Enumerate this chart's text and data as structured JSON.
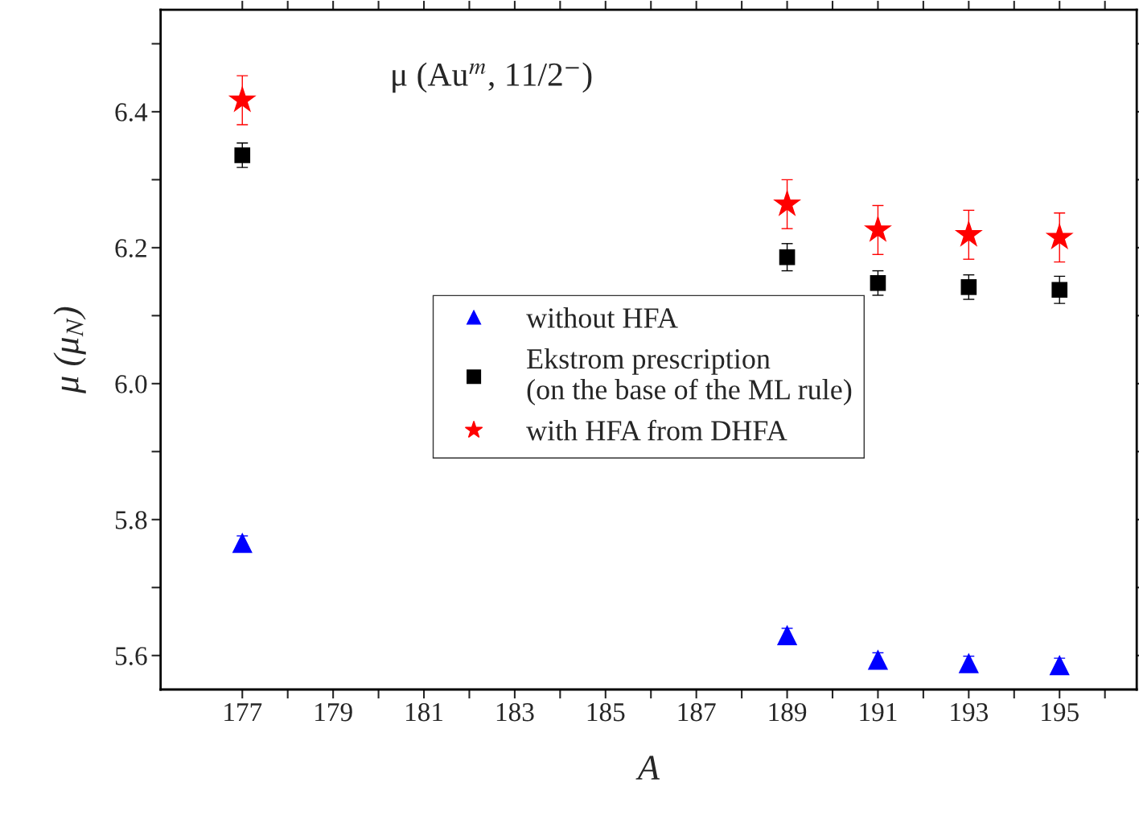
{
  "chart_data": {
    "type": "scatter",
    "xlabel": "A",
    "ylabel": "μ (μ$_{N}$)",
    "annotations": [
      "μ (Au$^{m}$, 11/2$^{−}$)"
    ],
    "x": [
      177,
      189,
      191,
      193,
      195
    ],
    "xlim": [
      175.2,
      196.7
    ],
    "ylim": [
      5.55,
      6.55
    ],
    "xticks": [
      177,
      {
        "value": 178,
        "label": null
      },
      179,
      {
        "value": 180,
        "label": null
      },
      181,
      {
        "value": 182,
        "label": null
      },
      183,
      {
        "value": 184,
        "label": null
      },
      185,
      {
        "value": 186,
        "label": null
      },
      187,
      {
        "value": 188,
        "label": null
      },
      189,
      {
        "value": 190,
        "label": null
      },
      191,
      {
        "value": 192,
        "label": null
      },
      193,
      {
        "value": 194,
        "label": null
      },
      195,
      {
        "value": 196,
        "label": null
      }
    ],
    "yticks": [
      5.6,
      {
        "value": 5.7,
        "label": null
      },
      5.8,
      {
        "value": 5.9,
        "label": null
      },
      {
        "value": 6.0,
        "label": "6.0"
      },
      {
        "value": 6.1,
        "label": null
      },
      6.2,
      {
        "value": 6.3,
        "label": null
      },
      6.4,
      {
        "value": 6.5,
        "label": null
      }
    ],
    "grid": false,
    "legend": "center",
    "series": [
      {
        "name": "without HFA",
        "color": "#0000ff",
        "marker": "triangle",
        "values": [
          5.766,
          5.63,
          5.594,
          5.589,
          5.586
        ],
        "errors": [
          0.01,
          0.01,
          0.01,
          0.01,
          0.01
        ]
      },
      {
        "name": "Ekstrom prescription\n(on the base of the ML rule)",
        "color": "#000000",
        "marker": "square",
        "values": [
          6.336,
          6.186,
          6.148,
          6.142,
          6.138
        ],
        "errors": [
          0.018,
          0.02,
          0.018,
          0.018,
          0.02
        ]
      },
      {
        "name": "with HFA from DHFA",
        "color": "#ff0000",
        "marker": "star",
        "values": [
          6.417,
          6.264,
          6.226,
          6.219,
          6.215
        ],
        "errors": [
          0.036,
          0.036,
          0.036,
          0.036,
          0.036
        ]
      }
    ]
  }
}
